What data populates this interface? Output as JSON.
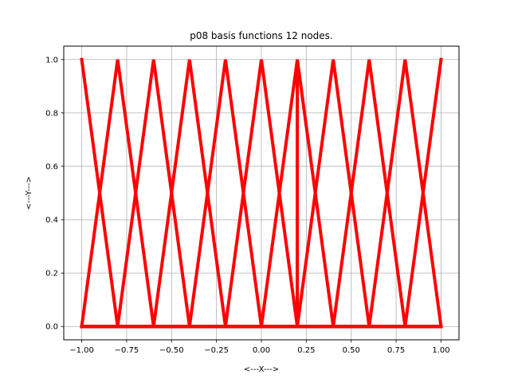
{
  "chart_data": {
    "type": "line",
    "title": "p08 basis functions 12 nodes.",
    "xlabel": "<---X--->",
    "ylabel": "<---Y--->",
    "xlim": [
      -1.1,
      1.1
    ],
    "ylim": [
      -0.05,
      1.05
    ],
    "grid": true,
    "x_ticks": [
      -1.0,
      -0.75,
      -0.5,
      -0.25,
      0.0,
      0.25,
      0.5,
      0.75,
      1.0
    ],
    "x_tick_labels": [
      "−1.00",
      "−0.75",
      "−0.50",
      "−0.25",
      "0.00",
      "0.25",
      "0.50",
      "0.75",
      "1.00"
    ],
    "y_ticks": [
      0.0,
      0.2,
      0.4,
      0.6,
      0.8,
      1.0
    ],
    "y_tick_labels": [
      "0.0",
      "0.2",
      "0.4",
      "0.6",
      "0.8",
      "1.0"
    ],
    "line_color": "#ff0000",
    "nodes": [
      -1.0,
      -0.8,
      -0.6,
      -0.4,
      -0.2,
      0.0,
      0.2,
      0.2,
      0.4,
      0.6,
      0.8,
      1.0
    ],
    "series": [
      {
        "x": [
          -1.0,
          -0.8,
          1.0
        ],
        "y": [
          1,
          0,
          0
        ]
      },
      {
        "x": [
          -1.0,
          -0.8,
          -0.6,
          1.0
        ],
        "y": [
          0,
          1,
          0,
          0
        ]
      },
      {
        "x": [
          -1.0,
          -0.8,
          -0.6,
          -0.4,
          1.0
        ],
        "y": [
          0,
          0,
          1,
          0,
          0
        ]
      },
      {
        "x": [
          -1.0,
          -0.6,
          -0.4,
          -0.2,
          1.0
        ],
        "y": [
          0,
          0,
          1,
          0,
          0
        ]
      },
      {
        "x": [
          -1.0,
          -0.4,
          -0.2,
          0.0,
          1.0
        ],
        "y": [
          0,
          0,
          1,
          0,
          0
        ]
      },
      {
        "x": [
          -1.0,
          -0.2,
          0.0,
          0.2,
          1.0
        ],
        "y": [
          0,
          0,
          1,
          0,
          0
        ]
      },
      {
        "x": [
          -1.0,
          0.0,
          0.2,
          0.2,
          1.0
        ],
        "y": [
          0,
          0,
          1,
          0,
          0
        ]
      },
      {
        "x": [
          -1.0,
          0.2,
          0.2,
          0.4,
          1.0
        ],
        "y": [
          0,
          0,
          1,
          0,
          0
        ]
      },
      {
        "x": [
          -1.0,
          0.2,
          0.4,
          0.6,
          1.0
        ],
        "y": [
          0,
          0,
          1,
          0,
          0
        ]
      },
      {
        "x": [
          -1.0,
          0.4,
          0.6,
          0.8,
          1.0
        ],
        "y": [
          0,
          0,
          1,
          0,
          0
        ]
      },
      {
        "x": [
          -1.0,
          0.6,
          0.8,
          1.0
        ],
        "y": [
          0,
          0,
          1,
          0
        ]
      },
      {
        "x": [
          -1.0,
          0.8,
          1.0
        ],
        "y": [
          0,
          0,
          1
        ]
      }
    ]
  }
}
